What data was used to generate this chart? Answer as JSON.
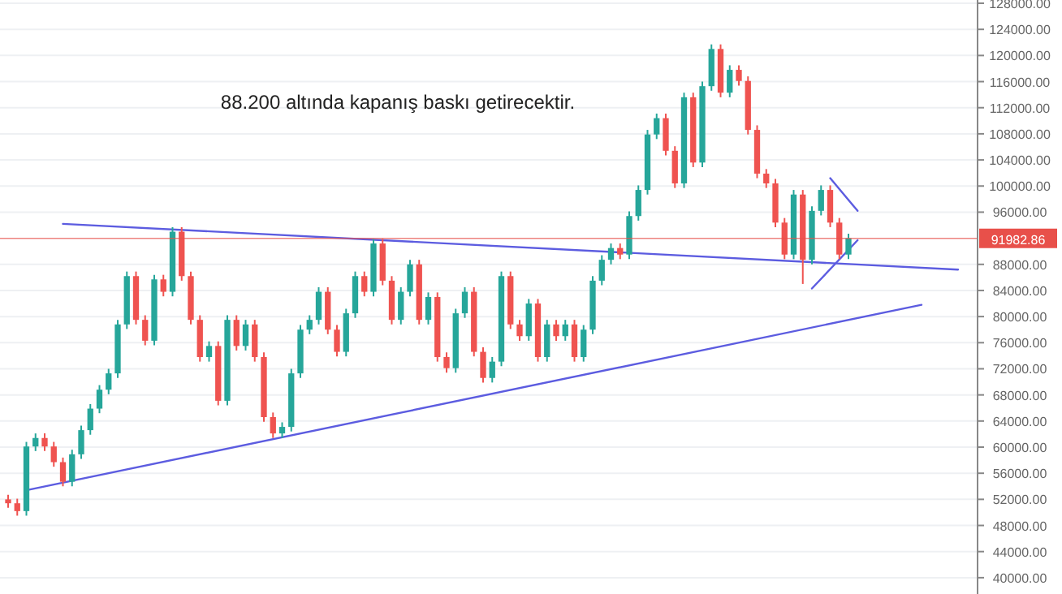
{
  "chart_data": {
    "type": "candlestick",
    "categories": [
      null,
      null,
      null,
      null,
      null,
      null,
      null,
      null,
      null,
      null,
      null,
      null,
      null,
      null,
      null,
      null,
      null,
      null,
      null,
      null,
      null,
      null,
      null,
      null,
      null,
      null,
      null,
      null,
      null,
      null,
      null,
      null,
      null,
      null,
      null,
      null,
      null,
      null,
      null,
      null,
      null,
      null,
      null,
      null,
      null,
      null,
      null,
      null,
      null,
      null,
      null,
      null,
      null,
      null,
      null,
      null,
      null,
      null,
      null,
      null,
      null,
      null,
      null,
      null,
      null,
      null,
      null,
      null,
      null,
      null,
      null,
      null,
      null,
      null,
      null,
      null,
      null,
      null,
      null,
      null,
      null,
      null,
      null,
      null,
      null,
      null,
      null,
      null,
      null,
      null,
      null,
      null,
      null,
      null,
      null,
      null,
      null,
      null,
      null,
      null,
      null,
      null,
      null,
      null,
      null
    ],
    "ohlc": [
      [
        52000,
        52700,
        50700,
        51400
      ],
      [
        51400,
        52100,
        49500,
        50200
      ],
      [
        50200,
        60800,
        49500,
        60100
      ],
      [
        60100,
        62100,
        59400,
        61400
      ],
      [
        61400,
        62100,
        59400,
        60100
      ],
      [
        60100,
        60800,
        57000,
        57700
      ],
      [
        57700,
        58400,
        54000,
        54700
      ],
      [
        54700,
        59600,
        54000,
        58900
      ],
      [
        58900,
        63300,
        58200,
        62600
      ],
      [
        62600,
        66600,
        61900,
        65900
      ],
      [
        65900,
        69500,
        65200,
        68800
      ],
      [
        68800,
        72000,
        68100,
        71300
      ],
      [
        71300,
        79500,
        70600,
        78800
      ],
      [
        78800,
        86900,
        78100,
        86200
      ],
      [
        86200,
        86900,
        78800,
        79500
      ],
      [
        79500,
        80200,
        75600,
        76300
      ],
      [
        76300,
        86400,
        75600,
        85700
      ],
      [
        85700,
        86400,
        83100,
        83800
      ],
      [
        83800,
        93700,
        83100,
        93000
      ],
      [
        93000,
        93700,
        85500,
        86200
      ],
      [
        86200,
        86900,
        78800,
        79500
      ],
      [
        79500,
        80200,
        73100,
        73800
      ],
      [
        73800,
        76200,
        73100,
        75500
      ],
      [
        75500,
        76200,
        66400,
        67100
      ],
      [
        67100,
        80200,
        66400,
        79500
      ],
      [
        79500,
        80200,
        74800,
        75500
      ],
      [
        75500,
        79500,
        74800,
        78800
      ],
      [
        78800,
        79500,
        73100,
        73800
      ],
      [
        73800,
        74500,
        63900,
        64600
      ],
      [
        64600,
        65300,
        61400,
        62100
      ],
      [
        62100,
        63800,
        61400,
        63100
      ],
      [
        63100,
        72000,
        62400,
        71300
      ],
      [
        71300,
        78700,
        70600,
        78000
      ],
      [
        78000,
        80200,
        77300,
        79500
      ],
      [
        79500,
        84500,
        78800,
        83800
      ],
      [
        83800,
        84500,
        77300,
        78000
      ],
      [
        78000,
        78700,
        73900,
        74600
      ],
      [
        74600,
        81200,
        73900,
        80500
      ],
      [
        80500,
        86900,
        79800,
        86200
      ],
      [
        86200,
        86900,
        83100,
        83800
      ],
      [
        83800,
        91900,
        83100,
        91200
      ],
      [
        91200,
        91900,
        84800,
        85500
      ],
      [
        85500,
        86200,
        78800,
        79500
      ],
      [
        79500,
        84500,
        78800,
        83800
      ],
      [
        83800,
        88700,
        83100,
        88000
      ],
      [
        88000,
        88700,
        78800,
        79500
      ],
      [
        79500,
        83700,
        78800,
        83000
      ],
      [
        83000,
        83700,
        73100,
        73800
      ],
      [
        73800,
        74500,
        71400,
        72100
      ],
      [
        72100,
        81200,
        71400,
        80500
      ],
      [
        80500,
        84500,
        79800,
        83800
      ],
      [
        83800,
        84500,
        73900,
        74600
      ],
      [
        74600,
        75300,
        69900,
        70600
      ],
      [
        70600,
        73800,
        69900,
        73100
      ],
      [
        73100,
        86900,
        72400,
        86200
      ],
      [
        86200,
        86900,
        78100,
        78800
      ],
      [
        78800,
        79500,
        76300,
        77000
      ],
      [
        77000,
        82700,
        76300,
        82000
      ],
      [
        82000,
        82700,
        73100,
        73800
      ],
      [
        73800,
        79500,
        73100,
        78800
      ],
      [
        78800,
        79500,
        76300,
        77000
      ],
      [
        77000,
        79500,
        76300,
        78800
      ],
      [
        78800,
        79500,
        73100,
        73800
      ],
      [
        73800,
        78700,
        73100,
        78000
      ],
      [
        78000,
        86200,
        77300,
        85500
      ],
      [
        85500,
        89400,
        84800,
        88700
      ],
      [
        88700,
        91200,
        88000,
        90500
      ],
      [
        90500,
        91200,
        88800,
        89500
      ],
      [
        89500,
        96100,
        88800,
        95400
      ],
      [
        95400,
        100100,
        94700,
        99400
      ],
      [
        99400,
        108600,
        98700,
        107900
      ],
      [
        107900,
        111100,
        107200,
        110400
      ],
      [
        110400,
        111100,
        104700,
        105400
      ],
      [
        105400,
        106100,
        99700,
        100400
      ],
      [
        100400,
        114300,
        99700,
        113600
      ],
      [
        113600,
        114300,
        102900,
        103600
      ],
      [
        103600,
        116000,
        102900,
        115300
      ],
      [
        115300,
        121700,
        114600,
        121000
      ],
      [
        121000,
        121700,
        113600,
        114300
      ],
      [
        114300,
        118500,
        113600,
        117800
      ],
      [
        117800,
        118500,
        115400,
        116100
      ],
      [
        116100,
        116800,
        107900,
        108600
      ],
      [
        108600,
        109300,
        101200,
        101900
      ],
      [
        101900,
        102600,
        99700,
        100400
      ],
      [
        100400,
        101100,
        93700,
        94400
      ],
      [
        94400,
        95100,
        88800,
        89500
      ],
      [
        89500,
        99400,
        88800,
        98700
      ],
      [
        98700,
        99400,
        85000,
        88700
      ],
      [
        88700,
        96900,
        88000,
        96200
      ],
      [
        96200,
        100100,
        95500,
        99400
      ],
      [
        99400,
        100100,
        93700,
        94400
      ],
      [
        94400,
        95100,
        88800,
        89500
      ],
      [
        89500,
        92700,
        88800,
        92000
      ],
      null,
      null,
      null,
      null,
      null,
      null,
      null,
      null,
      null,
      null,
      null,
      null
    ],
    "series": [
      {
        "type": "line",
        "color": "#5c5ce0",
        "values": [
          null,
          null,
          null,
          null,
          null,
          null,
          94200,
          null,
          null,
          null,
          null,
          null,
          null,
          null,
          null,
          null,
          null,
          null,
          null,
          null,
          null,
          null,
          null,
          null,
          null,
          null,
          null,
          null,
          null,
          null,
          null,
          null,
          null,
          null,
          null,
          null,
          null,
          null,
          null,
          null,
          null,
          null,
          null,
          null,
          null,
          null,
          null,
          null,
          null,
          null,
          null,
          null,
          null,
          null,
          null,
          null,
          null,
          null,
          null,
          null,
          null,
          null,
          null,
          null,
          null,
          null,
          null,
          null,
          null,
          null,
          null,
          null,
          null,
          null,
          null,
          null,
          null,
          null,
          null,
          null,
          null,
          null,
          null,
          null,
          null,
          null,
          null,
          null,
          null,
          null,
          null,
          null,
          null,
          null,
          null,
          null,
          null,
          null,
          null,
          null,
          null,
          null,
          null,
          null,
          87200
        ]
      },
      {
        "type": "line",
        "color": "#5c5ce0",
        "values": [
          null,
          null,
          53400,
          null,
          null,
          null,
          null,
          null,
          null,
          null,
          null,
          null,
          null,
          null,
          null,
          null,
          null,
          null,
          null,
          null,
          null,
          null,
          null,
          null,
          null,
          null,
          null,
          null,
          null,
          null,
          null,
          null,
          null,
          null,
          null,
          null,
          null,
          null,
          null,
          null,
          null,
          null,
          null,
          null,
          null,
          null,
          null,
          null,
          null,
          null,
          null,
          null,
          null,
          null,
          null,
          null,
          null,
          null,
          null,
          null,
          null,
          null,
          null,
          null,
          null,
          null,
          null,
          null,
          null,
          null,
          null,
          null,
          null,
          null,
          null,
          null,
          null,
          null,
          null,
          null,
          null,
          null,
          null,
          null,
          null,
          null,
          null,
          null,
          null,
          null,
          null,
          null,
          null,
          null,
          null,
          null,
          null,
          null,
          null,
          null,
          81800,
          null,
          null,
          null,
          null
        ]
      },
      {
        "type": "line",
        "color": "#5c5ce0",
        "values": [
          null,
          null,
          null,
          null,
          null,
          null,
          null,
          null,
          null,
          null,
          null,
          null,
          null,
          null,
          null,
          null,
          null,
          null,
          null,
          null,
          null,
          null,
          null,
          null,
          null,
          null,
          null,
          null,
          null,
          null,
          null,
          null,
          null,
          null,
          null,
          null,
          null,
          null,
          null,
          null,
          null,
          null,
          null,
          null,
          null,
          null,
          null,
          null,
          null,
          null,
          null,
          null,
          null,
          null,
          null,
          null,
          null,
          null,
          null,
          null,
          null,
          null,
          null,
          null,
          null,
          null,
          null,
          null,
          null,
          null,
          null,
          null,
          null,
          null,
          null,
          null,
          null,
          null,
          null,
          null,
          null,
          null,
          null,
          null,
          null,
          null,
          null,
          null,
          null,
          null,
          101200,
          null,
          null,
          96200,
          null,
          null,
          null,
          null,
          null,
          null,
          null,
          null,
          null,
          null,
          null
        ]
      },
      {
        "type": "line",
        "color": "#5c5ce0",
        "values": [
          null,
          null,
          null,
          null,
          null,
          null,
          null,
          null,
          null,
          null,
          null,
          null,
          null,
          null,
          null,
          null,
          null,
          null,
          null,
          null,
          null,
          null,
          null,
          null,
          null,
          null,
          null,
          null,
          null,
          null,
          null,
          null,
          null,
          null,
          null,
          null,
          null,
          null,
          null,
          null,
          null,
          null,
          null,
          null,
          null,
          null,
          null,
          null,
          null,
          null,
          null,
          null,
          null,
          null,
          null,
          null,
          null,
          null,
          null,
          null,
          null,
          null,
          null,
          null,
          null,
          null,
          null,
          null,
          null,
          null,
          null,
          null,
          null,
          null,
          null,
          null,
          null,
          null,
          null,
          null,
          null,
          null,
          null,
          null,
          null,
          null,
          null,
          null,
          84300,
          null,
          null,
          null,
          null,
          91700,
          null,
          null,
          null,
          null,
          null,
          null,
          null,
          null,
          null,
          null,
          null
        ]
      }
    ],
    "ylim": [
      37500,
      128500
    ],
    "yticks": [
      {
        "value": 40000,
        "label": "40000.00"
      },
      {
        "value": 44000,
        "label": "44000.00"
      },
      {
        "value": 48000,
        "label": "48000.00"
      },
      {
        "value": 52000,
        "label": "52000.00"
      },
      {
        "value": 56000,
        "label": "56000.00"
      },
      {
        "value": 60000,
        "label": "60000.00"
      },
      {
        "value": 64000,
        "label": "64000.00"
      },
      {
        "value": 68000,
        "label": "68000.00"
      },
      {
        "value": 72000,
        "label": "72000.00"
      },
      {
        "value": 76000,
        "label": "76000.00"
      },
      {
        "value": 80000,
        "label": "80000.00"
      },
      {
        "value": 84000,
        "label": "84000.00"
      },
      {
        "value": 88000,
        "label": "88000.00"
      },
      {
        "value": 96000,
        "label": "96000.00"
      },
      {
        "value": 100000,
        "label": "100000.00"
      },
      {
        "value": 104000,
        "label": "104000.00"
      },
      {
        "value": 108000,
        "label": "108000.00"
      },
      {
        "value": 112000,
        "label": "112000.00"
      },
      {
        "value": 116000,
        "label": "116000.00"
      },
      {
        "value": 120000,
        "label": "120000.00"
      },
      {
        "value": 124000,
        "label": "124000.00"
      },
      {
        "value": 128000,
        "label": "128000.00"
      }
    ],
    "ref_lines": [
      {
        "axis": "y",
        "value": 91982.86,
        "label": "91982.86",
        "color": "#e8504a"
      }
    ],
    "annotations": [
      "88.200 altında kapanış baskı getirecektir."
    ],
    "grid": "y",
    "tick_labels": "y"
  }
}
